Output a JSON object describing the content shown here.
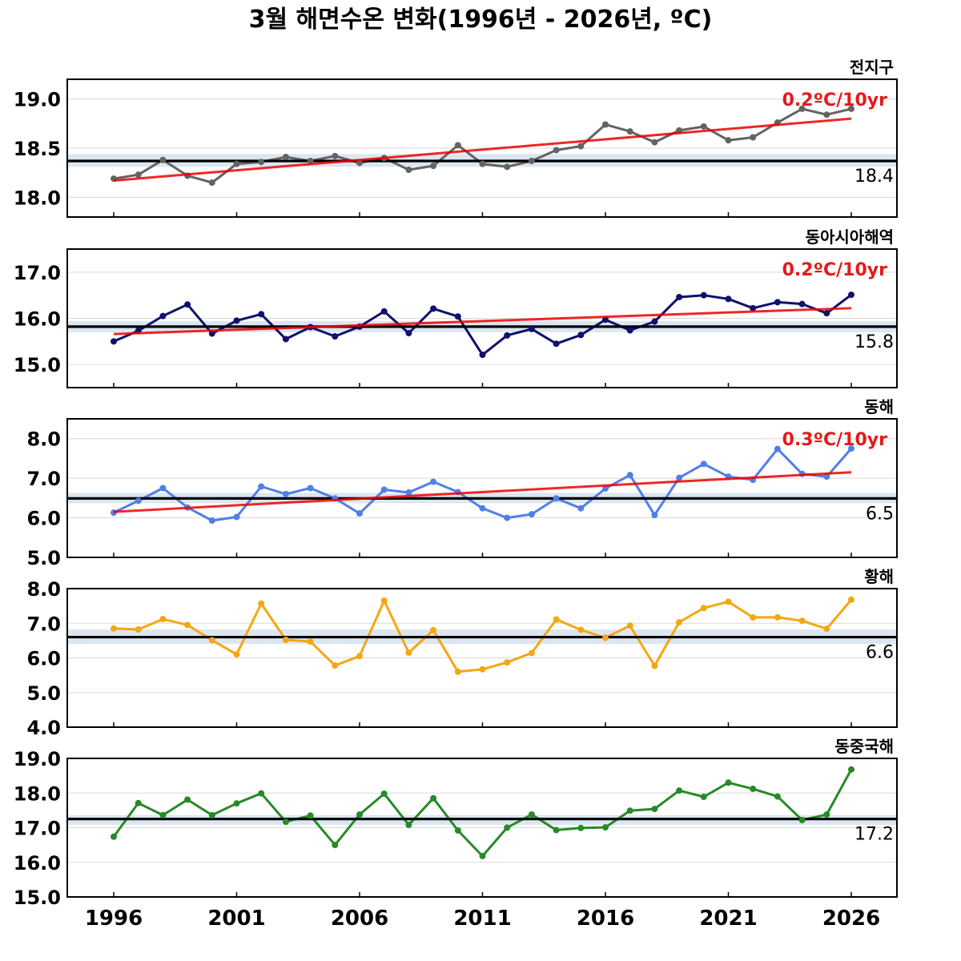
{
  "title": "3월 해면수온 변화(1996년 - 2026년, ºC)",
  "x_ticks": [
    "1996",
    "2001",
    "2006",
    "2011",
    "2016",
    "2021",
    "2026"
  ],
  "colors": {
    "trend": "#ee0000",
    "mean": "#000000",
    "band": "#dbe6f1",
    "grid": "#d9d9d9"
  },
  "chart_data": [
    {
      "type": "line",
      "name": "전지구",
      "color": "#636363",
      "x": [
        1996,
        1997,
        1998,
        1999,
        2000,
        2001,
        2002,
        2003,
        2004,
        2005,
        2006,
        2007,
        2008,
        2009,
        2010,
        2011,
        2012,
        2013,
        2014,
        2015,
        2016,
        2017,
        2018,
        2019,
        2020,
        2021,
        2022,
        2023,
        2024,
        2025,
        2026
      ],
      "values": [
        18.19,
        18.23,
        18.38,
        18.22,
        18.15,
        18.34,
        18.36,
        18.41,
        18.37,
        18.42,
        18.35,
        18.4,
        18.28,
        18.32,
        18.53,
        18.34,
        18.31,
        18.37,
        18.48,
        18.52,
        18.74,
        18.67,
        18.56,
        18.68,
        18.72,
        18.58,
        18.61,
        18.76,
        18.9,
        18.84,
        18.9
      ],
      "ylim": [
        17.8,
        19.2
      ],
      "yticks": [
        "18.0",
        "18.5",
        "19.0"
      ],
      "mean": 18.37,
      "mean_label": "18.4",
      "band": [
        18.31,
        18.44
      ],
      "trend": {
        "start": 18.17,
        "end": 18.8,
        "label": "0.2ºC/10yr"
      }
    },
    {
      "type": "line",
      "name": "동아시아해역",
      "color": "#10106e",
      "x": [
        1996,
        1997,
        1998,
        1999,
        2000,
        2001,
        2002,
        2003,
        2004,
        2005,
        2006,
        2007,
        2008,
        2009,
        2010,
        2011,
        2012,
        2013,
        2014,
        2015,
        2016,
        2017,
        2018,
        2019,
        2020,
        2021,
        2022,
        2023,
        2024,
        2025,
        2026
      ],
      "values": [
        15.5,
        15.73,
        16.05,
        16.3,
        15.67,
        15.95,
        16.09,
        15.55,
        15.81,
        15.61,
        15.82,
        16.15,
        15.68,
        16.21,
        16.04,
        15.21,
        15.63,
        15.77,
        15.45,
        15.64,
        15.97,
        15.74,
        15.93,
        16.46,
        16.5,
        16.42,
        16.22,
        16.35,
        16.31,
        16.11,
        16.51
      ],
      "ylim": [
        14.5,
        17.5
      ],
      "yticks": [
        "15.0",
        "16.0",
        "17.0"
      ],
      "mean": 15.82,
      "mean_label": "15.8",
      "band": [
        15.7,
        15.94
      ],
      "trend": {
        "start": 15.66,
        "end": 16.22,
        "label": "0.2ºC/10yr"
      }
    },
    {
      "type": "line",
      "name": "동해",
      "color": "#4f7fe8",
      "x": [
        1996,
        1997,
        1998,
        1999,
        2000,
        2001,
        2002,
        2003,
        2004,
        2005,
        2006,
        2007,
        2008,
        2009,
        2010,
        2011,
        2012,
        2013,
        2014,
        2015,
        2016,
        2017,
        2018,
        2019,
        2020,
        2021,
        2022,
        2023,
        2024,
        2025,
        2026
      ],
      "values": [
        6.13,
        6.43,
        6.75,
        6.26,
        5.93,
        6.02,
        6.79,
        6.6,
        6.75,
        6.49,
        6.11,
        6.71,
        6.64,
        6.91,
        6.65,
        6.24,
        6.0,
        6.09,
        6.49,
        6.24,
        6.74,
        7.08,
        6.07,
        7.01,
        7.36,
        7.04,
        6.96,
        7.74,
        7.11,
        7.04,
        7.75
      ],
      "ylim": [
        5.0,
        8.5
      ],
      "yticks": [
        "5.0",
        "6.0",
        "7.0",
        "8.0"
      ],
      "mean": 6.49,
      "mean_label": "6.5",
      "band": [
        6.37,
        6.63
      ],
      "trend": {
        "start": 6.15,
        "end": 7.15,
        "label": "0.3ºC/10yr"
      }
    },
    {
      "type": "line",
      "name": "황해",
      "color": "#f5a711",
      "x": [
        1996,
        1997,
        1998,
        1999,
        2000,
        2001,
        2002,
        2003,
        2004,
        2005,
        2006,
        2007,
        2008,
        2009,
        2010,
        2011,
        2012,
        2013,
        2014,
        2015,
        2016,
        2017,
        2018,
        2019,
        2020,
        2021,
        2022,
        2023,
        2024,
        2025,
        2026
      ],
      "values": [
        6.85,
        6.82,
        7.12,
        6.95,
        6.51,
        6.1,
        7.57,
        6.52,
        6.47,
        5.78,
        6.05,
        7.65,
        6.15,
        6.8,
        5.6,
        5.67,
        5.87,
        6.14,
        7.11,
        6.81,
        6.58,
        6.93,
        5.77,
        7.03,
        7.44,
        7.62,
        7.17,
        7.17,
        7.07,
        6.84,
        7.68
      ],
      "ylim": [
        4.0,
        8.0
      ],
      "yticks": [
        "4.0",
        "5.0",
        "6.0",
        "7.0",
        "8.0"
      ],
      "mean": 6.6,
      "mean_label": "6.6",
      "band": [
        6.4,
        6.82
      ]
    },
    {
      "type": "line",
      "name": "동중국해",
      "color": "#278a27",
      "x": [
        1996,
        1997,
        1998,
        1999,
        2000,
        2001,
        2002,
        2003,
        2004,
        2005,
        2006,
        2007,
        2008,
        2009,
        2010,
        2011,
        2012,
        2013,
        2014,
        2015,
        2016,
        2017,
        2018,
        2019,
        2020,
        2021,
        2022,
        2023,
        2024,
        2025,
        2026
      ],
      "values": [
        16.74,
        17.71,
        17.36,
        17.81,
        17.36,
        17.7,
        17.99,
        17.17,
        17.35,
        16.5,
        17.38,
        17.98,
        17.08,
        17.85,
        16.92,
        16.18,
        17.0,
        17.38,
        16.93,
        16.99,
        17.01,
        17.49,
        17.54,
        18.07,
        17.89,
        18.3,
        18.12,
        17.9,
        17.22,
        17.38,
        18.68
      ],
      "ylim": [
        15.0,
        19.0
      ],
      "yticks": [
        "15.0",
        "16.0",
        "17.0",
        "18.0",
        "19.0"
      ],
      "mean": 17.25,
      "mean_label": "17.2",
      "band": [
        17.08,
        17.36
      ]
    }
  ]
}
